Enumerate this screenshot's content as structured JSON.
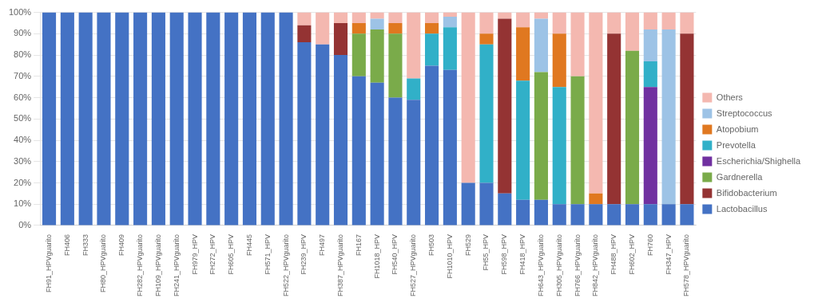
{
  "chart_data": {
    "type": "bar",
    "stacked": true,
    "grid": true,
    "legend": "right",
    "categories": [
      "FH91_HPVguarito",
      "FH406",
      "FH333",
      "FH80_HPVguarito",
      "FH409",
      "FH282_HPVguarito",
      "FH109_HPVguarito",
      "FH241_HPVguarito",
      "FH979_HPV",
      "FH272_HPV",
      "FH605_HPV",
      "FH445",
      "FH571_HPV",
      "FH522_HPVguarito",
      "FH239_HPV",
      "FH497",
      "FH387_HPVguarito",
      "FH167",
      "FH1018_HPV",
      "FH540_HPV",
      "FH527_HPVguarito",
      "FH503",
      "FH1010_HPV",
      "FH529",
      "FH55_HPV",
      "FH598_HPV",
      "FH418_HPV",
      "FH643_HPVguarito",
      "FH305_HPVguarito",
      "FH766_HPVguarito",
      "FH842_HPVguarito",
      "FH488_HPV",
      "FH602_HPV",
      "FH760",
      "FH347_HPV",
      "FH578_HPVguarito"
    ],
    "series": [
      {
        "name": "Lactobacillus",
        "color": "#4472C4",
        "values": [
          100,
          100,
          100,
          100,
          100,
          100,
          100,
          100,
          100,
          100,
          100,
          100,
          100,
          100,
          86,
          85,
          80,
          70,
          67,
          60,
          59,
          75,
          73,
          20,
          20,
          15,
          12,
          12,
          10,
          10,
          10,
          10,
          10,
          10,
          10,
          10
        ]
      },
      {
        "name": "Bifidobacterium",
        "color": "#943333",
        "values": [
          0,
          0,
          0,
          0,
          0,
          0,
          0,
          0,
          0,
          0,
          0,
          0,
          0,
          0,
          8,
          0,
          15,
          0,
          0,
          0,
          0,
          0,
          0,
          0,
          0,
          82,
          0,
          0,
          0,
          0,
          0,
          80,
          0,
          0,
          0,
          80
        ]
      },
      {
        "name": "Gardnerella",
        "color": "#7AAB4A",
        "values": [
          0,
          0,
          0,
          0,
          0,
          0,
          0,
          0,
          0,
          0,
          0,
          0,
          0,
          0,
          0,
          0,
          0,
          20,
          25,
          30,
          0,
          0,
          0,
          0,
          0,
          0,
          0,
          60,
          0,
          60,
          0,
          0,
          72,
          0,
          0,
          0
        ]
      },
      {
        "name": "Escherichia/Shighella",
        "color": "#7030A0",
        "values": [
          0,
          0,
          0,
          0,
          0,
          0,
          0,
          0,
          0,
          0,
          0,
          0,
          0,
          0,
          0,
          0,
          0,
          0,
          0,
          0,
          0,
          0,
          0,
          0,
          0,
          0,
          0,
          0,
          0,
          0,
          0,
          0,
          0,
          55,
          0,
          0
        ]
      },
      {
        "name": "Prevotella",
        "color": "#31B0C8",
        "values": [
          0,
          0,
          0,
          0,
          0,
          0,
          0,
          0,
          0,
          0,
          0,
          0,
          0,
          0,
          0,
          0,
          0,
          0,
          0,
          0,
          10,
          15,
          20,
          0,
          65,
          0,
          56,
          0,
          55,
          0,
          0,
          0,
          0,
          12,
          0,
          0
        ]
      },
      {
        "name": "Atopobium",
        "color": "#E07820",
        "values": [
          0,
          0,
          0,
          0,
          0,
          0,
          0,
          0,
          0,
          0,
          0,
          0,
          0,
          0,
          0,
          0,
          0,
          5,
          0,
          5,
          0,
          5,
          0,
          0,
          5,
          0,
          25,
          0,
          25,
          0,
          5,
          0,
          0,
          0,
          0,
          0
        ]
      },
      {
        "name": "Streptococcus",
        "color": "#9DC3E6",
        "values": [
          0,
          0,
          0,
          0,
          0,
          0,
          0,
          0,
          0,
          0,
          0,
          0,
          0,
          0,
          0,
          0,
          0,
          0,
          5,
          0,
          0,
          0,
          5,
          0,
          0,
          0,
          0,
          25,
          0,
          0,
          0,
          0,
          0,
          15,
          82,
          0
        ]
      },
      {
        "name": "Others",
        "color": "#F4B8B0",
        "values": [
          0,
          0,
          0,
          0,
          0,
          0,
          0,
          0,
          0,
          0,
          0,
          0,
          0,
          0,
          6,
          15,
          5,
          5,
          3,
          5,
          31,
          5,
          2,
          80,
          10,
          3,
          7,
          3,
          10,
          30,
          85,
          10,
          18,
          8,
          8,
          10
        ]
      }
    ],
    "ylim": [
      0,
      100
    ],
    "yticks": [
      {
        "value": 0,
        "label": "0%"
      },
      {
        "value": 10,
        "label": "10%"
      },
      {
        "value": 20,
        "label": "20%"
      },
      {
        "value": 30,
        "label": "30%"
      },
      {
        "value": 40,
        "label": "40%"
      },
      {
        "value": 50,
        "label": "50%"
      },
      {
        "value": 60,
        "label": "60%"
      },
      {
        "value": 70,
        "label": "70%"
      },
      {
        "value": 80,
        "label": "80%"
      },
      {
        "value": 90,
        "label": "90%"
      },
      {
        "value": 100,
        "label": "100%"
      }
    ]
  }
}
